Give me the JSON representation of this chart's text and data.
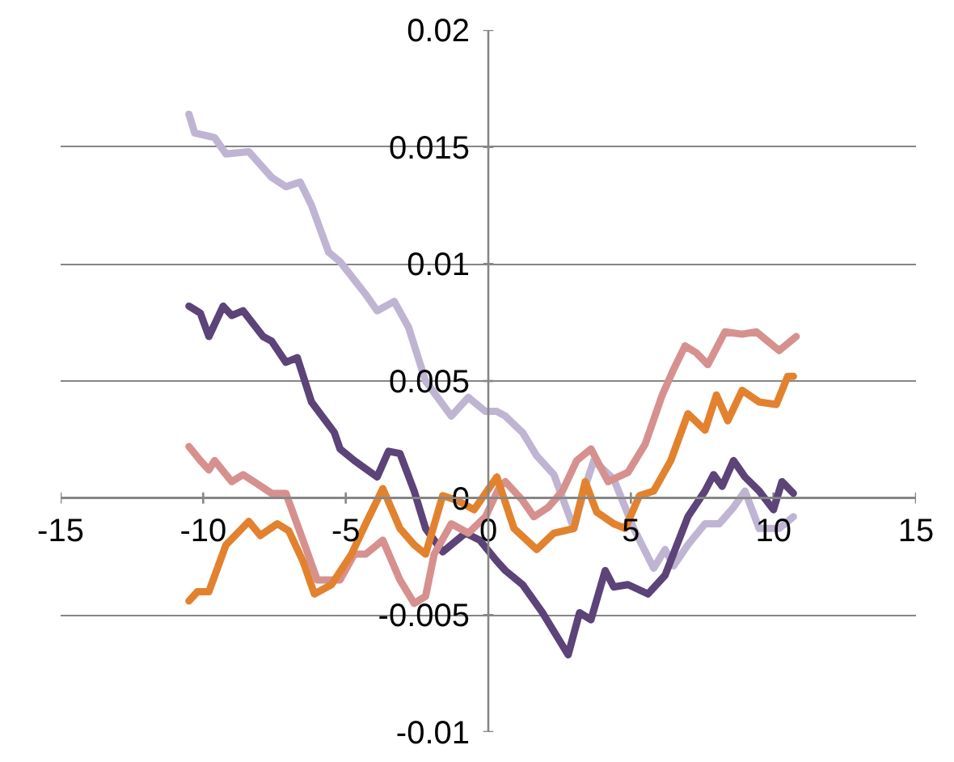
{
  "chart_data": {
    "type": "line",
    "xlim": [
      -15,
      15
    ],
    "ylim": [
      -0.01,
      0.02
    ],
    "xticks": [
      -15,
      -10,
      -5,
      0,
      5,
      10,
      15
    ],
    "yticks": [
      -0.01,
      -0.005,
      0,
      0.005,
      0.01,
      0.015,
      0.02
    ],
    "grid": "y",
    "line_style": "solid",
    "series": [
      {
        "color": "#bfb5d3",
        "x": [
          -10.5,
          -10.3,
          -9.6,
          -9.2,
          -8.4,
          -7.6,
          -7.1,
          -6.6,
          -6.2,
          -5.6,
          -5.2,
          -4.3,
          -3.9,
          -3.3,
          -2.8,
          -2.2,
          -1.3,
          -0.7,
          -0.1,
          0.3,
          0.6,
          1.2,
          1.7,
          2.3,
          3.0,
          3.4,
          3.7,
          4.4,
          5.1,
          5.8,
          6.2,
          6.5,
          7.0,
          7.6,
          8.1,
          8.6,
          9.0,
          9.5,
          10.2,
          10.7
        ],
        "values": [
          0.0164,
          0.0156,
          0.0154,
          0.0147,
          0.0148,
          0.0137,
          0.0133,
          0.0135,
          0.0125,
          0.0105,
          0.0101,
          0.0087,
          0.008,
          0.0084,
          0.0073,
          0.005,
          0.0035,
          0.0043,
          0.0037,
          0.0037,
          0.0035,
          0.0028,
          0.0018,
          0.001,
          -0.0013,
          0.0005,
          0.0016,
          0.0008,
          -0.0013,
          -0.003,
          -0.0022,
          -0.0029,
          -0.002,
          -0.0011,
          -0.0011,
          -0.0004,
          0.0003,
          -0.0013,
          -0.0013,
          -0.0008
        ]
      },
      {
        "color": "#5c4378",
        "x": [
          -10.5,
          -10.1,
          -9.8,
          -9.3,
          -9.0,
          -8.6,
          -7.9,
          -7.6,
          -7.1,
          -6.7,
          -6.2,
          -5.4,
          -5.2,
          -4.7,
          -3.9,
          -3.5,
          -3.1,
          -2.6,
          -2.2,
          -1.6,
          -0.8,
          -0.3,
          0.3,
          0.6,
          1.2,
          1.9,
          2.8,
          3.2,
          3.6,
          4.1,
          4.4,
          4.9,
          5.6,
          6.2,
          7.0,
          7.6,
          7.9,
          8.2,
          8.6,
          9.0,
          9.5,
          10.0,
          10.3,
          10.7
        ],
        "values": [
          0.0082,
          0.0079,
          0.0069,
          0.0082,
          0.0078,
          0.008,
          0.0069,
          0.0067,
          0.0058,
          0.006,
          0.0041,
          0.0028,
          0.0021,
          0.0016,
          0.0009,
          0.002,
          0.0019,
          0.0003,
          -0.0013,
          -0.0023,
          -0.0015,
          -0.0018,
          -0.0027,
          -0.0031,
          -0.0037,
          -0.0049,
          -0.0067,
          -0.0049,
          -0.0052,
          -0.0031,
          -0.0038,
          -0.0037,
          -0.0041,
          -0.0033,
          -0.0008,
          0.0003,
          0.001,
          0.0005,
          0.0016,
          0.0009,
          0.0003,
          -0.0005,
          0.0007,
          0.0002
        ]
      },
      {
        "color": "#d6918f",
        "x": [
          -10.5,
          -10.1,
          -9.8,
          -9.6,
          -9.0,
          -8.6,
          -8.1,
          -7.6,
          -7.1,
          -6.5,
          -6.0,
          -5.2,
          -4.7,
          -4.3,
          -3.7,
          -3.1,
          -2.6,
          -2.2,
          -1.9,
          -1.3,
          -0.7,
          -0.1,
          0.4,
          0.6,
          1.2,
          1.6,
          2.1,
          2.6,
          3.1,
          3.6,
          4.2,
          4.9,
          5.5,
          6.1,
          6.5,
          6.9,
          7.3,
          7.7,
          8.3,
          8.9,
          9.4,
          9.8,
          10.2,
          10.8
        ],
        "values": [
          0.0022,
          0.0016,
          0.0012,
          0.0016,
          0.0007,
          0.001,
          0.0006,
          0.0002,
          0.0002,
          -0.0018,
          -0.0035,
          -0.0035,
          -0.0024,
          -0.0024,
          -0.0018,
          -0.0035,
          -0.0045,
          -0.0042,
          -0.0024,
          -0.0011,
          -0.0015,
          -0.0008,
          0.0005,
          0.0007,
          -0.0001,
          -0.0008,
          -0.0004,
          0.0003,
          0.0016,
          0.0021,
          0.0007,
          0.0011,
          0.0023,
          0.0044,
          0.0055,
          0.0065,
          0.0062,
          0.0057,
          0.0071,
          0.007,
          0.0071,
          0.0067,
          0.0063,
          0.0069
        ]
      },
      {
        "color": "#e2822f",
        "x": [
          -10.5,
          -10.2,
          -9.8,
          -9.2,
          -8.8,
          -8.4,
          -8.0,
          -7.4,
          -7.0,
          -6.5,
          -6.1,
          -5.5,
          -4.8,
          -4.3,
          -3.7,
          -3.1,
          -2.6,
          -2.2,
          -1.6,
          -1.1,
          -0.5,
          0.3,
          0.9,
          1.7,
          2.3,
          3.0,
          3.4,
          3.8,
          4.4,
          4.8,
          5.3,
          5.8,
          6.4,
          7.0,
          7.6,
          8.0,
          8.4,
          8.9,
          9.5,
          10.1,
          10.5,
          10.7
        ],
        "values": [
          -0.0044,
          -0.004,
          -0.004,
          -0.002,
          -0.0015,
          -0.001,
          -0.0016,
          -0.0011,
          -0.0014,
          -0.0027,
          -0.0041,
          -0.0037,
          -0.0024,
          -0.0011,
          0.0004,
          -0.0013,
          -0.002,
          -0.0024,
          0.0001,
          -0.0001,
          -0.0005,
          0.0009,
          -0.0013,
          -0.0022,
          -0.0015,
          -0.0013,
          0.0007,
          -0.0006,
          -0.0011,
          -0.0013,
          0.0001,
          0.0003,
          0.0016,
          0.0036,
          0.0029,
          0.0044,
          0.0033,
          0.0046,
          0.0041,
          0.004,
          0.0052,
          0.0052
        ]
      }
    ]
  }
}
